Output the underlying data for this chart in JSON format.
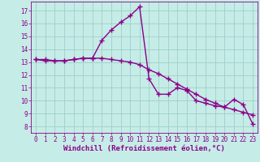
{
  "xlabel": "Windchill (Refroidissement éolien,°C)",
  "background_color": "#c5ece6",
  "line_color": "#8b008b",
  "grid_color": "#9fcfca",
  "x_ticks": [
    0,
    1,
    2,
    3,
    4,
    5,
    6,
    7,
    8,
    9,
    10,
    11,
    12,
    13,
    14,
    15,
    16,
    17,
    18,
    19,
    20,
    21,
    22,
    23
  ],
  "y_ticks": [
    8,
    9,
    10,
    11,
    12,
    13,
    14,
    15,
    16,
    17
  ],
  "xlim": [
    -0.5,
    23.5
  ],
  "ylim": [
    7.5,
    17.7
  ],
  "hours": [
    0,
    1,
    2,
    3,
    4,
    5,
    6,
    7,
    8,
    9,
    10,
    11,
    12,
    13,
    14,
    15,
    16,
    17,
    18,
    19,
    20,
    21,
    22,
    23
  ],
  "temp": [
    13.2,
    13.2,
    13.1,
    13.1,
    13.2,
    13.3,
    13.3,
    14.7,
    15.5,
    16.1,
    16.6,
    17.3,
    11.7,
    10.5,
    10.5,
    11.0,
    10.8,
    10.0,
    9.8,
    9.6,
    9.5,
    10.1,
    9.7,
    8.2
  ],
  "windchill": [
    13.2,
    13.1,
    13.1,
    13.1,
    13.2,
    13.3,
    13.3,
    13.3,
    13.2,
    13.1,
    13.0,
    12.8,
    12.4,
    12.1,
    11.7,
    11.3,
    10.9,
    10.5,
    10.1,
    9.8,
    9.5,
    9.3,
    9.1,
    8.9
  ],
  "marker": "+",
  "markersize": 4,
  "linewidth": 1.0,
  "tick_fontsize": 5.5,
  "xlabel_fontsize": 6.5
}
